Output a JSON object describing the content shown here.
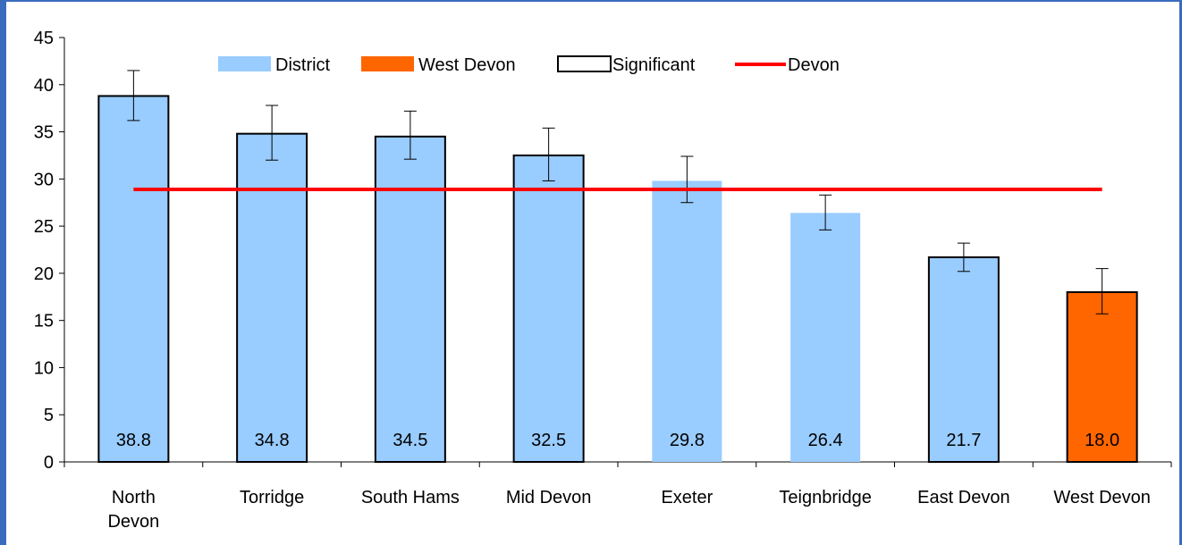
{
  "chart_data": {
    "type": "bar",
    "categories": [
      [
        "North",
        "Devon"
      ],
      [
        "Torridge"
      ],
      [
        "South Hams"
      ],
      [
        "Mid Devon"
      ],
      [
        "Exeter"
      ],
      [
        "Teignbridge"
      ],
      [
        "East Devon"
      ],
      [
        "West Devon"
      ]
    ],
    "values": [
      38.8,
      34.8,
      34.5,
      32.5,
      29.8,
      26.4,
      21.7,
      18.0
    ],
    "value_labels": [
      "38.8",
      "34.8",
      "34.5",
      "32.5",
      "29.8",
      "26.4",
      "21.7",
      "18.0"
    ],
    "error_low": [
      36.2,
      32.0,
      32.1,
      29.8,
      27.5,
      24.6,
      20.2,
      15.7
    ],
    "error_high": [
      41.5,
      37.8,
      37.2,
      35.4,
      32.4,
      28.3,
      23.2,
      20.5
    ],
    "significant": [
      true,
      true,
      true,
      true,
      false,
      false,
      true,
      true
    ],
    "highlight": [
      false,
      false,
      false,
      false,
      false,
      false,
      false,
      true
    ],
    "reference_line": {
      "name": "Devon",
      "value": 28.9
    },
    "ylim": [
      0,
      45
    ],
    "yticks": [
      "0",
      "5",
      "10",
      "15",
      "20",
      "25",
      "30",
      "35",
      "40",
      "45"
    ],
    "legend": [
      {
        "label": "District",
        "kind": "district"
      },
      {
        "label": "West Devon",
        "kind": "highlight"
      },
      {
        "label": "Significant",
        "kind": "significant"
      },
      {
        "label": "Devon",
        "kind": "line"
      }
    ],
    "legend_position": "top",
    "grid": false,
    "colors": {
      "district": "#99ccff",
      "highlight": "#ff6600",
      "line": "#ff0000",
      "outline": "#000000",
      "frame": "#3a6bbf"
    }
  }
}
